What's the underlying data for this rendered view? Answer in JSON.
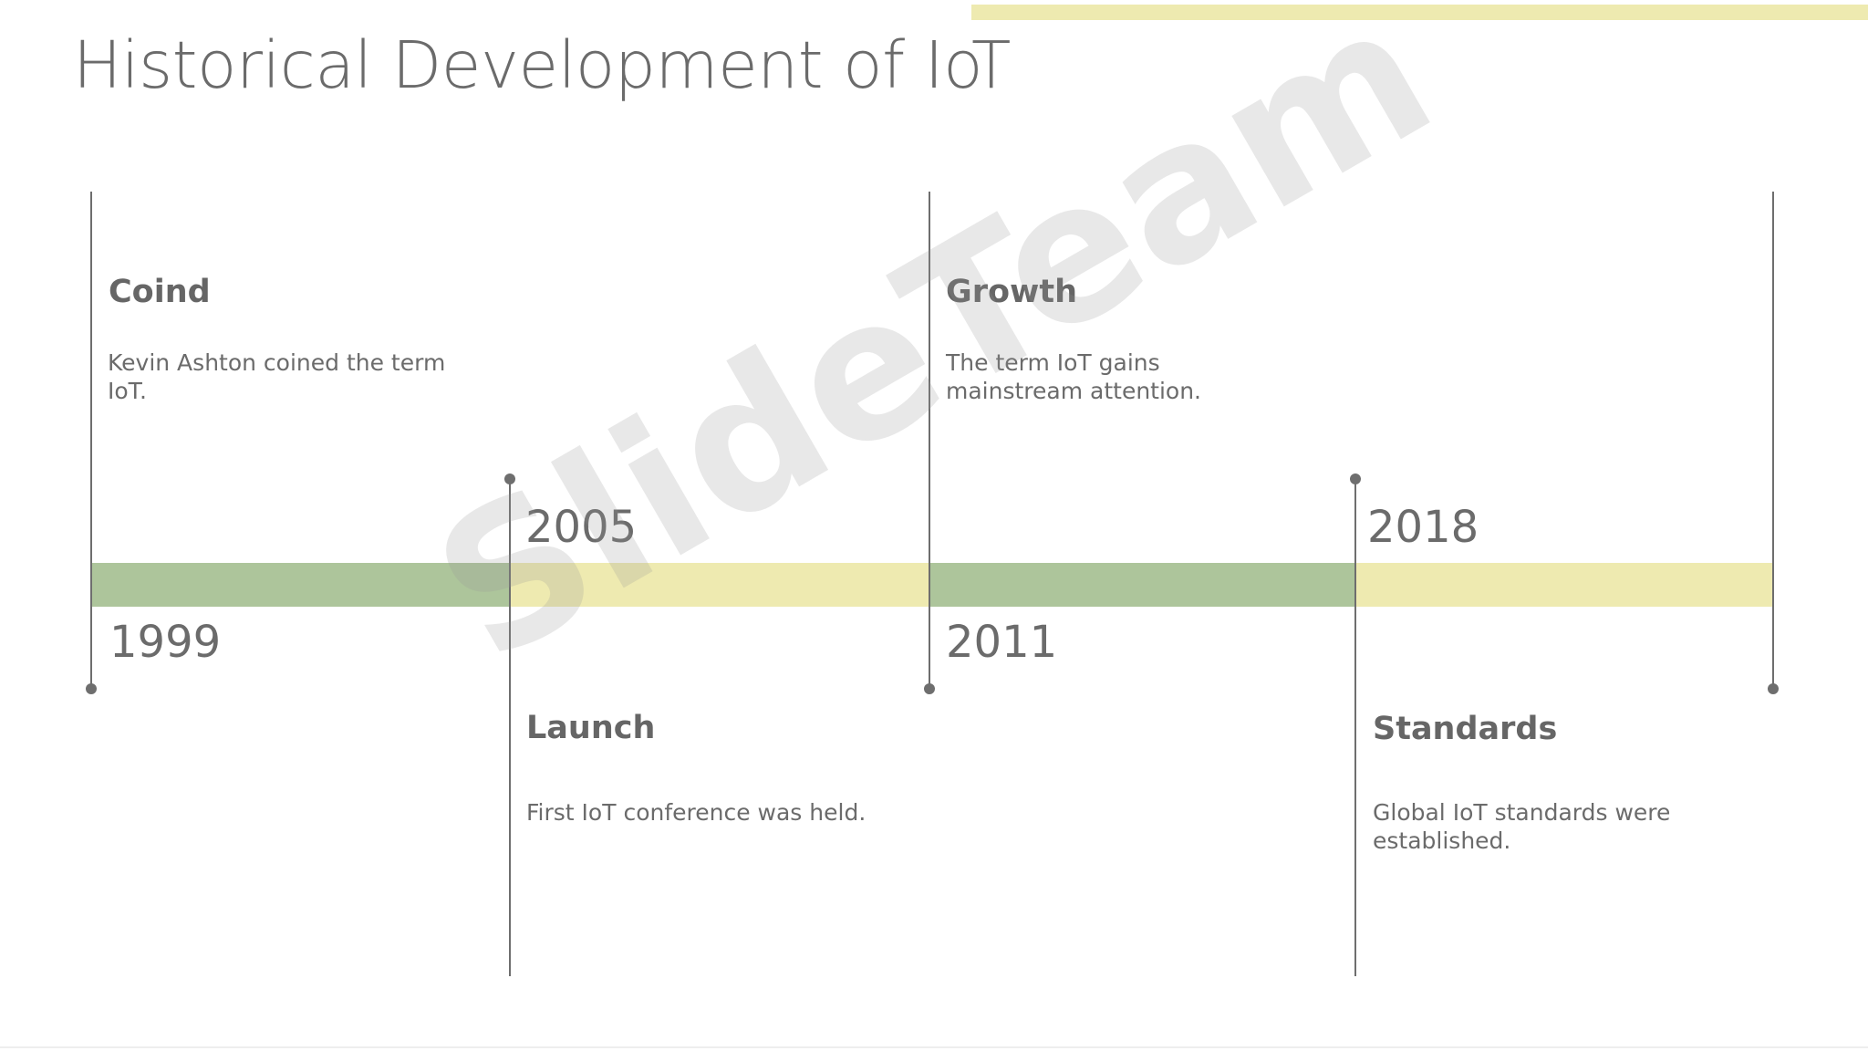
{
  "slide": {
    "title": "Historical Development of IoT",
    "watermark": "SlideTeam"
  },
  "colors": {
    "green": "#adc59b",
    "yellow": "#eeeab0",
    "line": "#6e6e6e",
    "text": "#6b6b6b"
  },
  "timeline": {
    "events": [
      {
        "year": "1999",
        "title": "Coind",
        "description": "Kevin Ashton coined the term IoT."
      },
      {
        "year": "2005",
        "title": "Launch",
        "description": "First IoT conference was held."
      },
      {
        "year": "2011",
        "title": "Growth",
        "description": "The term IoT gains mainstream attention."
      },
      {
        "year": "2018",
        "title": "Standards",
        "description": "Global IoT standards were established."
      }
    ]
  }
}
